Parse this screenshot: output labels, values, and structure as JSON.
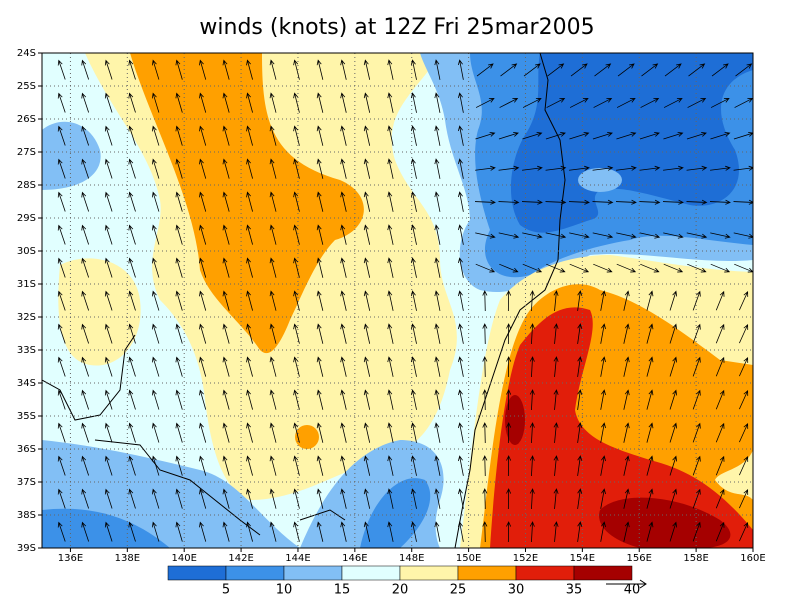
{
  "chart_data": {
    "type": "filled-contour-map",
    "title": "winds (knots) at 12Z Fri 25mar2005",
    "xlim": [
      135,
      160
    ],
    "ylim": [
      39,
      24
    ],
    "xticks": [
      {
        "value": 136,
        "label": "136E"
      },
      {
        "value": 138,
        "label": "138E"
      },
      {
        "value": 140,
        "label": "140E"
      },
      {
        "value": 142,
        "label": "142E"
      },
      {
        "value": 144,
        "label": "144E"
      },
      {
        "value": 146,
        "label": "146E"
      },
      {
        "value": 148,
        "label": "148E"
      },
      {
        "value": 150,
        "label": "150E"
      },
      {
        "value": 152,
        "label": "152E"
      },
      {
        "value": 154,
        "label": "154E"
      },
      {
        "value": 156,
        "label": "156E"
      },
      {
        "value": 158,
        "label": "158E"
      },
      {
        "value": 160,
        "label": "160E"
      }
    ],
    "yticks": [
      {
        "value": 24,
        "label": "24S"
      },
      {
        "value": 25,
        "label": "25S"
      },
      {
        "value": 26,
        "label": "26S"
      },
      {
        "value": 27,
        "label": "27S"
      },
      {
        "value": 28,
        "label": "28S"
      },
      {
        "value": 29,
        "label": "29S"
      },
      {
        "value": 30,
        "label": "30S"
      },
      {
        "value": 31,
        "label": "31S"
      },
      {
        "value": 32,
        "label": "32S"
      },
      {
        "value": 33,
        "label": "33S"
      },
      {
        "value": 34,
        "label": "34S"
      },
      {
        "value": 35,
        "label": "35S"
      },
      {
        "value": 36,
        "label": "36S"
      },
      {
        "value": 37,
        "label": "37S"
      },
      {
        "value": 38,
        "label": "38S"
      },
      {
        "value": 39,
        "label": "39S"
      }
    ],
    "levels": [
      5,
      10,
      15,
      20,
      25,
      30,
      35,
      40
    ],
    "colors": [
      "#1e6ed6",
      "#3c91e8",
      "#82bff5",
      "#e1ffff",
      "#fff5aa",
      "#ffa000",
      "#e11e0a",
      "#a50000"
    ],
    "grid": true
  }
}
